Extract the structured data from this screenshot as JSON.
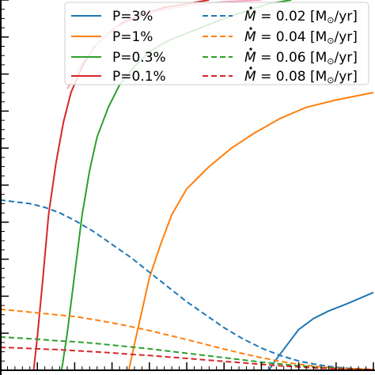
{
  "chart_data": {
    "type": "line",
    "title": "",
    "xlabel": "",
    "ylabel": "",
    "xlim": [
      0,
      1
    ],
    "ylim": [
      0,
      1
    ],
    "grid": false,
    "legend_position": "top-right",
    "series": [
      {
        "name": "P=3%",
        "color": "#1f77b4",
        "style": "solid",
        "points": [
          [
            0.72,
            0.0
          ],
          [
            0.74,
            0.03
          ],
          [
            0.77,
            0.07
          ],
          [
            0.8,
            0.11
          ],
          [
            0.84,
            0.14
          ],
          [
            0.88,
            0.16
          ],
          [
            0.93,
            0.18
          ],
          [
            1.0,
            0.21
          ]
        ]
      },
      {
        "name": "P=1%",
        "color": "#ff7f0e",
        "style": "solid",
        "points": [
          [
            0.345,
            0.0
          ],
          [
            0.36,
            0.07
          ],
          [
            0.38,
            0.16
          ],
          [
            0.4,
            0.25
          ],
          [
            0.43,
            0.34
          ],
          [
            0.46,
            0.42
          ],
          [
            0.5,
            0.49
          ],
          [
            0.56,
            0.55
          ],
          [
            0.62,
            0.6
          ],
          [
            0.68,
            0.64
          ],
          [
            0.75,
            0.68
          ],
          [
            0.82,
            0.71
          ],
          [
            0.9,
            0.73
          ],
          [
            1.0,
            0.75
          ]
        ]
      },
      {
        "name": "P=0.3%",
        "color": "#2ca02c",
        "style": "solid",
        "points": [
          [
            0.165,
            0.0
          ],
          [
            0.18,
            0.1
          ],
          [
            0.2,
            0.26
          ],
          [
            0.22,
            0.42
          ],
          [
            0.24,
            0.54
          ],
          [
            0.26,
            0.63
          ],
          [
            0.29,
            0.71
          ],
          [
            0.32,
            0.77
          ],
          [
            0.36,
            0.82
          ],
          [
            0.4,
            0.86
          ],
          [
            0.45,
            0.89
          ],
          [
            0.5,
            0.91
          ],
          [
            0.55,
            0.93
          ],
          [
            0.6,
            0.95
          ],
          [
            0.66,
            0.97
          ],
          [
            0.72,
            0.99
          ],
          [
            0.78,
            1.0
          ]
        ]
      },
      {
        "name": "P=0.1%",
        "color": "#d62728",
        "style": "solid",
        "points": [
          [
            0.09,
            0.0
          ],
          [
            0.1,
            0.09
          ],
          [
            0.115,
            0.25
          ],
          [
            0.13,
            0.42
          ],
          [
            0.15,
            0.56
          ],
          [
            0.17,
            0.67
          ],
          [
            0.19,
            0.75
          ],
          [
            0.22,
            0.82
          ],
          [
            0.25,
            0.87
          ],
          [
            0.29,
            0.91
          ],
          [
            0.33,
            0.94
          ],
          [
            0.38,
            0.96
          ],
          [
            0.44,
            0.98
          ],
          [
            0.5,
            0.99
          ],
          [
            0.56,
            1.0
          ]
        ]
      },
      {
        "name": "M = 0.02 [M⊙/yr]",
        "color": "#1f77b4",
        "style": "dashed",
        "points": [
          [
            0.0,
            0.46
          ],
          [
            0.04,
            0.455
          ],
          [
            0.08,
            0.45
          ],
          [
            0.12,
            0.44
          ],
          [
            0.16,
            0.425
          ],
          [
            0.2,
            0.405
          ],
          [
            0.25,
            0.375
          ],
          [
            0.3,
            0.34
          ],
          [
            0.35,
            0.305
          ],
          [
            0.4,
            0.265
          ],
          [
            0.45,
            0.225
          ],
          [
            0.5,
            0.185
          ],
          [
            0.55,
            0.15
          ],
          [
            0.6,
            0.115
          ],
          [
            0.65,
            0.085
          ],
          [
            0.7,
            0.06
          ],
          [
            0.75,
            0.04
          ],
          [
            0.8,
            0.025
          ],
          [
            0.85,
            0.015
          ],
          [
            0.9,
            0.008
          ],
          [
            0.95,
            0.004
          ],
          [
            1.0,
            0.002
          ]
        ]
      },
      {
        "name": "M = 0.04 [M⊙/yr]",
        "color": "#ff7f0e",
        "style": "dashed",
        "points": [
          [
            0.0,
            0.165
          ],
          [
            0.05,
            0.16
          ],
          [
            0.1,
            0.155
          ],
          [
            0.15,
            0.15
          ],
          [
            0.2,
            0.145
          ],
          [
            0.25,
            0.137
          ],
          [
            0.3,
            0.128
          ],
          [
            0.35,
            0.118
          ],
          [
            0.4,
            0.107
          ],
          [
            0.45,
            0.095
          ],
          [
            0.5,
            0.083
          ],
          [
            0.55,
            0.07
          ],
          [
            0.6,
            0.057
          ],
          [
            0.65,
            0.045
          ],
          [
            0.7,
            0.034
          ],
          [
            0.75,
            0.024
          ],
          [
            0.8,
            0.016
          ],
          [
            0.85,
            0.01
          ],
          [
            0.9,
            0.006
          ],
          [
            1.0,
            0.002
          ]
        ]
      },
      {
        "name": "M = 0.06 [M⊙/yr]",
        "color": "#2ca02c",
        "style": "dashed",
        "points": [
          [
            0.0,
            0.09
          ],
          [
            0.05,
            0.087
          ],
          [
            0.1,
            0.084
          ],
          [
            0.15,
            0.08
          ],
          [
            0.2,
            0.077
          ],
          [
            0.25,
            0.073
          ],
          [
            0.3,
            0.068
          ],
          [
            0.35,
            0.063
          ],
          [
            0.4,
            0.058
          ],
          [
            0.45,
            0.052
          ],
          [
            0.5,
            0.046
          ],
          [
            0.55,
            0.04
          ],
          [
            0.6,
            0.034
          ],
          [
            0.65,
            0.028
          ],
          [
            0.7,
            0.022
          ],
          [
            0.75,
            0.017
          ],
          [
            0.8,
            0.012
          ],
          [
            0.85,
            0.008
          ],
          [
            0.9,
            0.005
          ],
          [
            1.0,
            0.002
          ]
        ]
      },
      {
        "name": "M = 0.08 [M⊙/yr]",
        "color": "#d62728",
        "style": "dashed",
        "points": [
          [
            0.0,
            0.062
          ],
          [
            0.05,
            0.06
          ],
          [
            0.1,
            0.058
          ],
          [
            0.15,
            0.056
          ],
          [
            0.2,
            0.053
          ],
          [
            0.25,
            0.05
          ],
          [
            0.3,
            0.047
          ],
          [
            0.35,
            0.043
          ],
          [
            0.4,
            0.04
          ],
          [
            0.45,
            0.036
          ],
          [
            0.5,
            0.032
          ],
          [
            0.55,
            0.028
          ],
          [
            0.6,
            0.024
          ],
          [
            0.65,
            0.02
          ],
          [
            0.7,
            0.016
          ],
          [
            0.75,
            0.012
          ],
          [
            0.8,
            0.009
          ],
          [
            0.85,
            0.006
          ],
          [
            0.9,
            0.004
          ],
          [
            1.0,
            0.002
          ]
        ]
      },
      {
        "name": "",
        "color": "#f4a6c6",
        "style": "solid",
        "points": [
          [
            0.18,
            0.76
          ],
          [
            0.22,
            0.83
          ],
          [
            0.26,
            0.88
          ],
          [
            0.3,
            0.92
          ],
          [
            0.36,
            0.95
          ],
          [
            0.42,
            0.97
          ],
          [
            0.5,
            0.985
          ],
          [
            0.6,
            0.995
          ],
          [
            0.7,
            1.0
          ]
        ]
      }
    ],
    "legend": {
      "col1": [
        "P=3%",
        "P=1%",
        "P=0.3%",
        "P=0.1%"
      ],
      "col2_symbol": "M",
      "col2_values": [
        "= 0.02 [M",
        "= 0.04 [M",
        "= 0.06 [M",
        "= 0.08 [M"
      ],
      "col2_suffix": "/yr]",
      "colors": [
        "#1f77b4",
        "#ff7f0e",
        "#2ca02c",
        "#d62728"
      ]
    }
  }
}
